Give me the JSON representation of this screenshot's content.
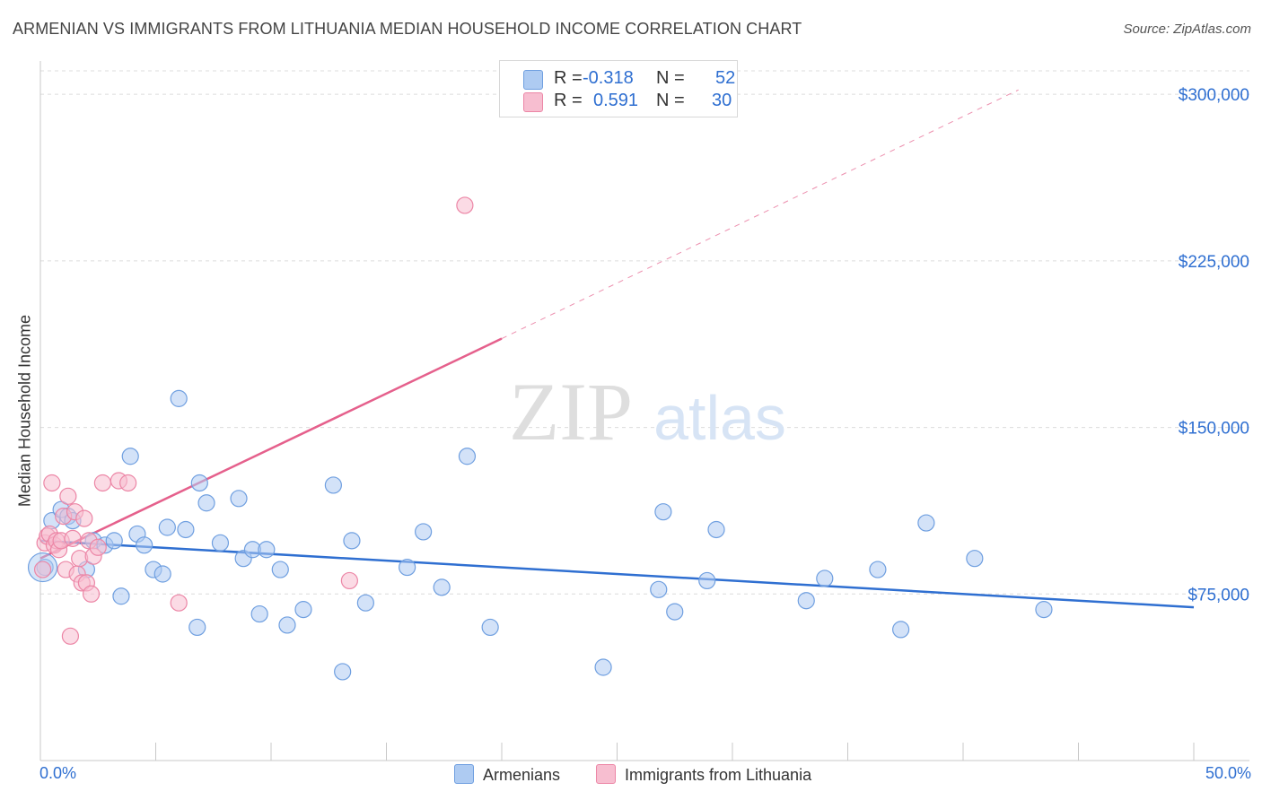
{
  "title": "ARMENIAN VS IMMIGRANTS FROM LITHUANIA MEDIAN HOUSEHOLD INCOME CORRELATION CHART",
  "source": "Source: ZipAtlas.com",
  "watermark": {
    "zip": "ZIP",
    "atlas": "atlas"
  },
  "legend": {
    "armenians": {
      "r_label": "R =",
      "r_value": "-0.318",
      "n_label": "N =",
      "n_value": "52"
    },
    "lithuania": {
      "r_label": "R =",
      "r_value": "0.591",
      "n_label": "N =",
      "n_value": "30"
    }
  },
  "colors": {
    "blue_fill": "#aecbf2",
    "blue_stroke": "#6f9fe0",
    "blue_line": "#2f6fd1",
    "pink_fill": "#f7bed0",
    "pink_stroke": "#ec86a6",
    "pink_line": "#e5608c",
    "grid": "#dcdcdc",
    "axis_text": "#2f6fd1"
  },
  "chart_data": {
    "type": "scatter",
    "title": "ARMENIAN VS IMMIGRANTS FROM LITHUANIA MEDIAN HOUSEHOLD INCOME CORRELATION CHART",
    "xlabel": "",
    "ylabel": "Median Household Income",
    "xlim": [
      0,
      50
    ],
    "ylim": [
      0,
      315000
    ],
    "x_tick_labels": [
      "0.0%",
      "50.0%"
    ],
    "y_ticks": [
      75000,
      150000,
      225000,
      300000
    ],
    "y_tick_labels": [
      "$75,000",
      "$150,000",
      "$225,000",
      "$300,000"
    ],
    "grid": true,
    "legend_position": "top-center",
    "series": [
      {
        "name": "Armenians",
        "points": [
          [
            0.2,
            87000
          ],
          [
            0.5,
            108000
          ],
          [
            0.9,
            113000
          ],
          [
            1.2,
            110000
          ],
          [
            1.4,
            108000
          ],
          [
            2.0,
            86000
          ],
          [
            2.3,
            99000
          ],
          [
            2.8,
            97000
          ],
          [
            3.2,
            99000
          ],
          [
            3.5,
            74000
          ],
          [
            3.9,
            137000
          ],
          [
            4.2,
            102000
          ],
          [
            4.5,
            97000
          ],
          [
            4.9,
            86000
          ],
          [
            5.3,
            84000
          ],
          [
            5.5,
            105000
          ],
          [
            6.0,
            163000
          ],
          [
            6.3,
            104000
          ],
          [
            6.8,
            60000
          ],
          [
            6.9,
            125000
          ],
          [
            7.2,
            116000
          ],
          [
            7.8,
            98000
          ],
          [
            8.6,
            118000
          ],
          [
            8.8,
            91000
          ],
          [
            9.2,
            95000
          ],
          [
            9.5,
            66000
          ],
          [
            9.8,
            95000
          ],
          [
            10.4,
            86000
          ],
          [
            10.7,
            61000
          ],
          [
            11.4,
            68000
          ],
          [
            12.7,
            124000
          ],
          [
            13.1,
            40000
          ],
          [
            13.5,
            99000
          ],
          [
            14.1,
            71000
          ],
          [
            15.9,
            87000
          ],
          [
            16.6,
            103000
          ],
          [
            17.4,
            78000
          ],
          [
            18.5,
            137000
          ],
          [
            19.5,
            60000
          ],
          [
            24.4,
            42000
          ],
          [
            26.8,
            77000
          ],
          [
            27.0,
            112000
          ],
          [
            27.5,
            67000
          ],
          [
            28.9,
            81000
          ],
          [
            29.3,
            104000
          ],
          [
            33.2,
            72000
          ],
          [
            34.0,
            82000
          ],
          [
            36.3,
            86000
          ],
          [
            37.3,
            59000
          ],
          [
            38.4,
            107000
          ],
          [
            40.5,
            91000
          ],
          [
            43.5,
            68000
          ]
        ],
        "trend": {
          "x": [
            0,
            50
          ],
          "y": [
            99000,
            69000
          ]
        }
      },
      {
        "name": "Immigrants from Lithuania",
        "points": [
          [
            0.1,
            86000
          ],
          [
            0.2,
            98000
          ],
          [
            0.3,
            101000
          ],
          [
            0.4,
            102000
          ],
          [
            0.5,
            125000
          ],
          [
            0.6,
            97000
          ],
          [
            0.7,
            99000
          ],
          [
            0.8,
            95000
          ],
          [
            0.9,
            99000
          ],
          [
            1.0,
            110000
          ],
          [
            1.1,
            86000
          ],
          [
            1.2,
            119000
          ],
          [
            1.3,
            56000
          ],
          [
            1.4,
            100000
          ],
          [
            1.5,
            112000
          ],
          [
            1.6,
            84000
          ],
          [
            1.7,
            91000
          ],
          [
            1.8,
            80000
          ],
          [
            1.9,
            109000
          ],
          [
            2.0,
            80000
          ],
          [
            2.1,
            99000
          ],
          [
            2.2,
            75000
          ],
          [
            2.3,
            92000
          ],
          [
            2.5,
            96000
          ],
          [
            2.7,
            125000
          ],
          [
            3.4,
            126000
          ],
          [
            3.8,
            125000
          ],
          [
            6.0,
            71000
          ],
          [
            13.4,
            81000
          ],
          [
            18.4,
            250000
          ]
        ],
        "trend": {
          "x": [
            0,
            20
          ],
          "y": [
            91000,
            190000
          ]
        },
        "trend_dashed": {
          "x": [
            20,
            42.4
          ],
          "y": [
            190000,
            302000
          ]
        }
      }
    ]
  },
  "bottom_legend": {
    "armenians": "Armenians",
    "lithuania": "Immigrants from Lithuania"
  }
}
